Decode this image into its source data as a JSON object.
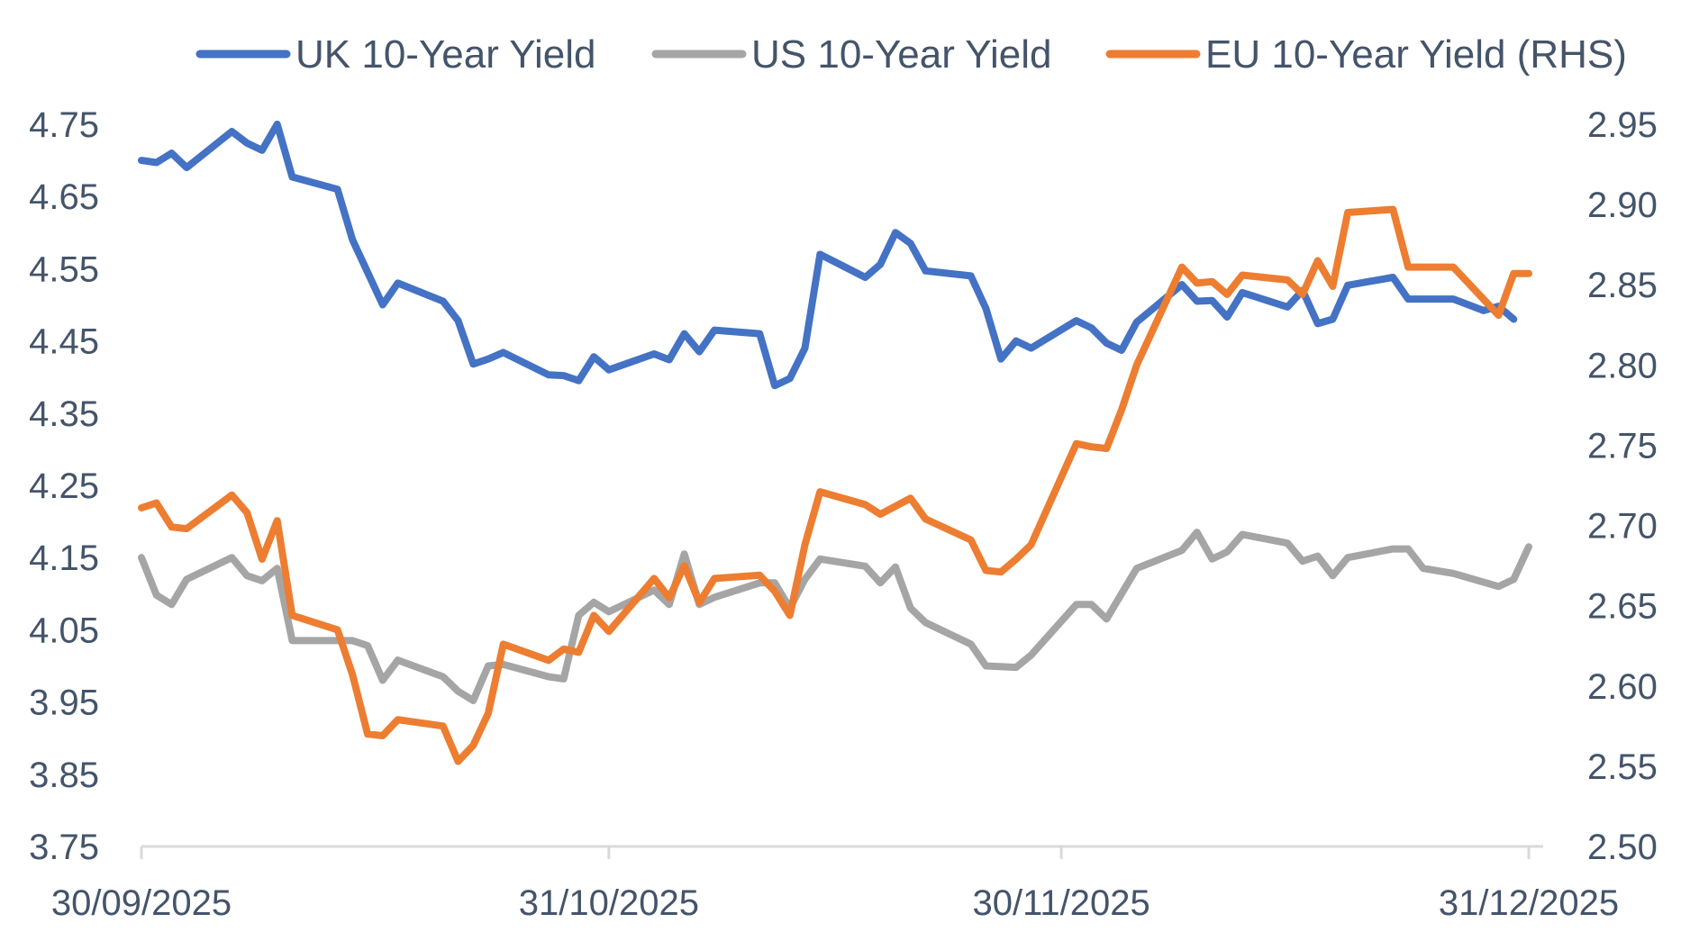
{
  "chart_data": {
    "type": "line",
    "title": "",
    "xlabel": "",
    "ylabel": "",
    "x_ticks": [
      "30/09/2025",
      "31/10/2025",
      "30/11/2025",
      "31/12/2025"
    ],
    "x_range_days": [
      0,
      92
    ],
    "ylim_left": [
      3.75,
      4.75
    ],
    "ylim_right": [
      2.5,
      2.95
    ],
    "y_ticks_left": [
      "4.75",
      "4.65",
      "4.55",
      "4.45",
      "4.35",
      "4.25",
      "4.15",
      "4.05",
      "3.95",
      "3.85",
      "3.75"
    ],
    "y_ticks_right": [
      "2.95",
      "2.90",
      "2.85",
      "2.80",
      "2.75",
      "2.70",
      "2.65",
      "2.60",
      "2.55",
      "2.50"
    ],
    "legend_position": "top",
    "grid": false,
    "series": [
      {
        "name": "UK 10-Year Yield",
        "axis": "left",
        "color": "#4472c4",
        "points": [
          [
            0,
            4.7
          ],
          [
            1,
            4.697
          ],
          [
            2,
            4.71
          ],
          [
            3,
            4.69
          ],
          [
            6,
            4.74
          ],
          [
            7,
            4.724
          ],
          [
            8,
            4.714
          ],
          [
            9,
            4.75
          ],
          [
            10,
            4.677
          ],
          [
            13,
            4.66
          ],
          [
            14,
            4.59
          ],
          [
            15,
            4.545
          ],
          [
            16,
            4.5
          ],
          [
            17,
            4.53
          ],
          [
            20,
            4.505
          ],
          [
            21,
            4.478
          ],
          [
            22,
            4.418
          ],
          [
            23,
            4.425
          ],
          [
            24,
            4.434
          ],
          [
            27,
            4.403
          ],
          [
            28,
            4.402
          ],
          [
            29,
            4.395
          ],
          [
            30,
            4.428
          ],
          [
            31,
            4.41
          ],
          [
            34,
            4.432
          ],
          [
            35,
            4.424
          ],
          [
            36,
            4.46
          ],
          [
            37,
            4.435
          ],
          [
            38,
            4.465
          ],
          [
            41,
            4.46
          ],
          [
            42,
            4.388
          ],
          [
            43,
            4.398
          ],
          [
            44,
            4.44
          ],
          [
            45,
            4.57
          ],
          [
            48,
            4.538
          ],
          [
            49,
            4.556
          ],
          [
            50,
            4.6
          ],
          [
            51,
            4.585
          ],
          [
            52,
            4.547
          ],
          [
            55,
            4.54
          ],
          [
            56,
            4.495
          ],
          [
            57,
            4.425
          ],
          [
            58,
            4.45
          ],
          [
            59,
            4.44
          ],
          [
            62,
            4.478
          ],
          [
            63,
            4.468
          ],
          [
            64,
            4.447
          ],
          [
            65,
            4.437
          ],
          [
            66,
            4.476
          ],
          [
            69,
            4.528
          ],
          [
            70,
            4.505
          ],
          [
            71,
            4.506
          ],
          [
            72,
            4.483
          ],
          [
            73,
            4.517
          ],
          [
            76,
            4.497
          ],
          [
            77,
            4.52
          ],
          [
            78,
            4.474
          ],
          [
            79,
            4.48
          ],
          [
            80,
            4.527
          ],
          [
            83,
            4.538
          ],
          [
            84,
            4.508
          ],
          [
            87,
            4.508
          ],
          [
            89,
            4.492
          ],
          [
            90,
            4.498
          ],
          [
            91,
            4.48
          ]
        ]
      },
      {
        "name": "US 10-Year Yield",
        "axis": "left",
        "color": "#a5a5a5",
        "points": [
          [
            0,
            4.15
          ],
          [
            1,
            4.098
          ],
          [
            2,
            4.085
          ],
          [
            3,
            4.12
          ],
          [
            6,
            4.15
          ],
          [
            7,
            4.125
          ],
          [
            8,
            4.118
          ],
          [
            9,
            4.135
          ],
          [
            10,
            4.035
          ],
          [
            13,
            4.035
          ],
          [
            14,
            4.035
          ],
          [
            15,
            4.028
          ],
          [
            16,
            3.98
          ],
          [
            17,
            4.008
          ],
          [
            20,
            3.985
          ],
          [
            21,
            3.965
          ],
          [
            22,
            3.952
          ],
          [
            23,
            4.0
          ],
          [
            24,
            4.002
          ],
          [
            27,
            3.985
          ],
          [
            28,
            3.982
          ],
          [
            29,
            4.07
          ],
          [
            30,
            4.088
          ],
          [
            31,
            4.075
          ],
          [
            34,
            4.105
          ],
          [
            35,
            4.085
          ],
          [
            36,
            4.155
          ],
          [
            37,
            4.085
          ],
          [
            38,
            4.095
          ],
          [
            41,
            4.115
          ],
          [
            42,
            4.115
          ],
          [
            43,
            4.08
          ],
          [
            44,
            4.12
          ],
          [
            45,
            4.148
          ],
          [
            48,
            4.138
          ],
          [
            49,
            4.115
          ],
          [
            50,
            4.137
          ],
          [
            51,
            4.08
          ],
          [
            52,
            4.06
          ],
          [
            55,
            4.03
          ],
          [
            56,
            4.0
          ],
          [
            58,
            3.998
          ],
          [
            59,
            4.015
          ],
          [
            62,
            4.085
          ],
          [
            63,
            4.085
          ],
          [
            64,
            4.065
          ],
          [
            65,
            4.1
          ],
          [
            66,
            4.135
          ],
          [
            69,
            4.16
          ],
          [
            70,
            4.185
          ],
          [
            71,
            4.148
          ],
          [
            72,
            4.158
          ],
          [
            73,
            4.182
          ],
          [
            76,
            4.17
          ],
          [
            77,
            4.145
          ],
          [
            78,
            4.152
          ],
          [
            79,
            4.125
          ],
          [
            80,
            4.15
          ],
          [
            83,
            4.162
          ],
          [
            84,
            4.162
          ],
          [
            85,
            4.135
          ],
          [
            87,
            4.128
          ],
          [
            90,
            4.11
          ],
          [
            91,
            4.12
          ],
          [
            92,
            4.165
          ]
        ]
      },
      {
        "name": "EU 10-Year Yield (RHS)",
        "axis": "right",
        "color": "#ed7d31",
        "points": [
          [
            0,
            2.711
          ],
          [
            1,
            2.714
          ],
          [
            2,
            2.699
          ],
          [
            3,
            2.698
          ],
          [
            6,
            2.719
          ],
          [
            7,
            2.708
          ],
          [
            8,
            2.679
          ],
          [
            9,
            2.703
          ],
          [
            10,
            2.644
          ],
          [
            13,
            2.635
          ],
          [
            14,
            2.607
          ],
          [
            15,
            2.57
          ],
          [
            16,
            2.569
          ],
          [
            17,
            2.579
          ],
          [
            20,
            2.575
          ],
          [
            21,
            2.553
          ],
          [
            22,
            2.563
          ],
          [
            23,
            2.583
          ],
          [
            24,
            2.626
          ],
          [
            27,
            2.616
          ],
          [
            28,
            2.623
          ],
          [
            29,
            2.621
          ],
          [
            30,
            2.644
          ],
          [
            31,
            2.634
          ],
          [
            34,
            2.667
          ],
          [
            35,
            2.655
          ],
          [
            36,
            2.675
          ],
          [
            37,
            2.652
          ],
          [
            38,
            2.667
          ],
          [
            41,
            2.669
          ],
          [
            42,
            2.659
          ],
          [
            43,
            2.644
          ],
          [
            44,
            2.688
          ],
          [
            45,
            2.721
          ],
          [
            48,
            2.713
          ],
          [
            49,
            2.707
          ],
          [
            50,
            2.712
          ],
          [
            51,
            2.717
          ],
          [
            52,
            2.704
          ],
          [
            55,
            2.691
          ],
          [
            56,
            2.672
          ],
          [
            57,
            2.671
          ],
          [
            58,
            2.679
          ],
          [
            59,
            2.688
          ],
          [
            62,
            2.751
          ],
          [
            63,
            2.749
          ],
          [
            64,
            2.748
          ],
          [
            65,
            2.772
          ],
          [
            66,
            2.8
          ],
          [
            69,
            2.861
          ],
          [
            70,
            2.851
          ],
          [
            71,
            2.852
          ],
          [
            72,
            2.844
          ],
          [
            73,
            2.856
          ],
          [
            76,
            2.853
          ],
          [
            77,
            2.844
          ],
          [
            78,
            2.865
          ],
          [
            79,
            2.849
          ],
          [
            80,
            2.895
          ],
          [
            83,
            2.897
          ],
          [
            84,
            2.861
          ],
          [
            87,
            2.861
          ],
          [
            90,
            2.831
          ],
          [
            91,
            2.857
          ],
          [
            92,
            2.857
          ]
        ]
      }
    ]
  }
}
